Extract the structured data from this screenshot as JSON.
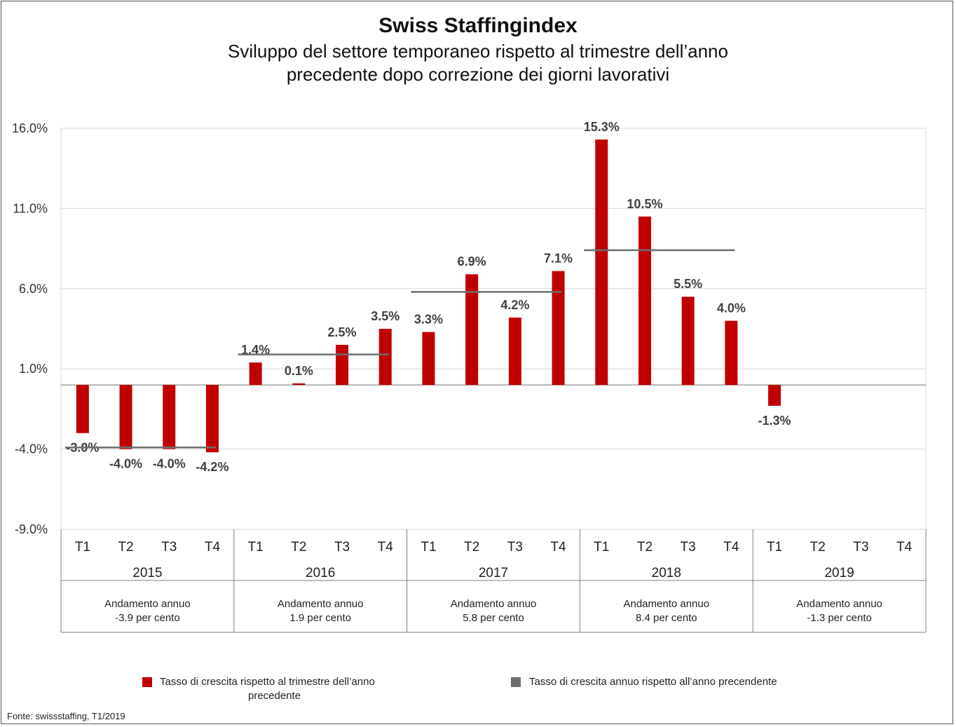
{
  "title": "Swiss Staffingindex",
  "subtitle_line1": "Sviluppo del settore temporaneo rispetto al trimestre dell’anno",
  "subtitle_line2": "precedente dopo correzione dei giorni lavorativi",
  "colors": {
    "bar": "#c00000",
    "annual_line": "#6e6e6e",
    "grid": "#d9d9d9",
    "axis": "#7f7f7f"
  },
  "chart_data": {
    "type": "bar",
    "title": "Swiss Staffingindex",
    "ylim": [
      -9,
      16
    ],
    "yticks": [
      16,
      11,
      6,
      1,
      -4,
      -9
    ],
    "ytick_labels": [
      "16.0%",
      "11.0%",
      "6.0%",
      "1.0%",
      "-4.0%",
      "-9.0%"
    ],
    "grid": true,
    "quarters": [
      "T1",
      "T2",
      "T3",
      "T4"
    ],
    "years": [
      "2015",
      "2016",
      "2017",
      "2018",
      "2019"
    ],
    "series": [
      {
        "name": "Tasso di crescita rispetto al trimestre dell’anno precedente",
        "values": [
          -3.0,
          -4.0,
          -4.0,
          -4.2,
          1.4,
          0.1,
          2.5,
          3.5,
          3.3,
          6.9,
          4.2,
          7.1,
          15.3,
          10.5,
          5.5,
          4.0,
          -1.3,
          null,
          null,
          null
        ],
        "labels": [
          "-3.0%",
          "-4.0%",
          "-4.0%",
          "-4.2%",
          "1.4%",
          "0.1%",
          "2.5%",
          "3.5%",
          "3.3%",
          "6.9%",
          "4.2%",
          "7.1%",
          "15.3%",
          "10.5%",
          "5.5%",
          "4.0%",
          "-1.3%",
          "",
          "",
          ""
        ]
      },
      {
        "name": "Tasso di crescita annuo rispetto all’anno precendente",
        "values": [
          -3.9,
          1.9,
          5.8,
          8.4
        ]
      }
    ],
    "annual_text": [
      [
        "Andamento annuo",
        "-3.9 per cento"
      ],
      [
        "Andamento annuo",
        "1.9 per cento"
      ],
      [
        "Andamento annuo",
        "5.8 per cento"
      ],
      [
        "Andamento annuo",
        "8.4 per cento"
      ],
      [
        "Andamento annuo",
        "-1.3 per cento"
      ]
    ]
  },
  "legend": {
    "bar_label_line1": "Tasso di crescita rispetto al trimestre dell’anno",
    "bar_label_line2": "precedente",
    "line_label": "Tasso di crescita annuo rispetto all’anno precendente"
  },
  "source": "Fonte: swissstaffing, T1/2019"
}
